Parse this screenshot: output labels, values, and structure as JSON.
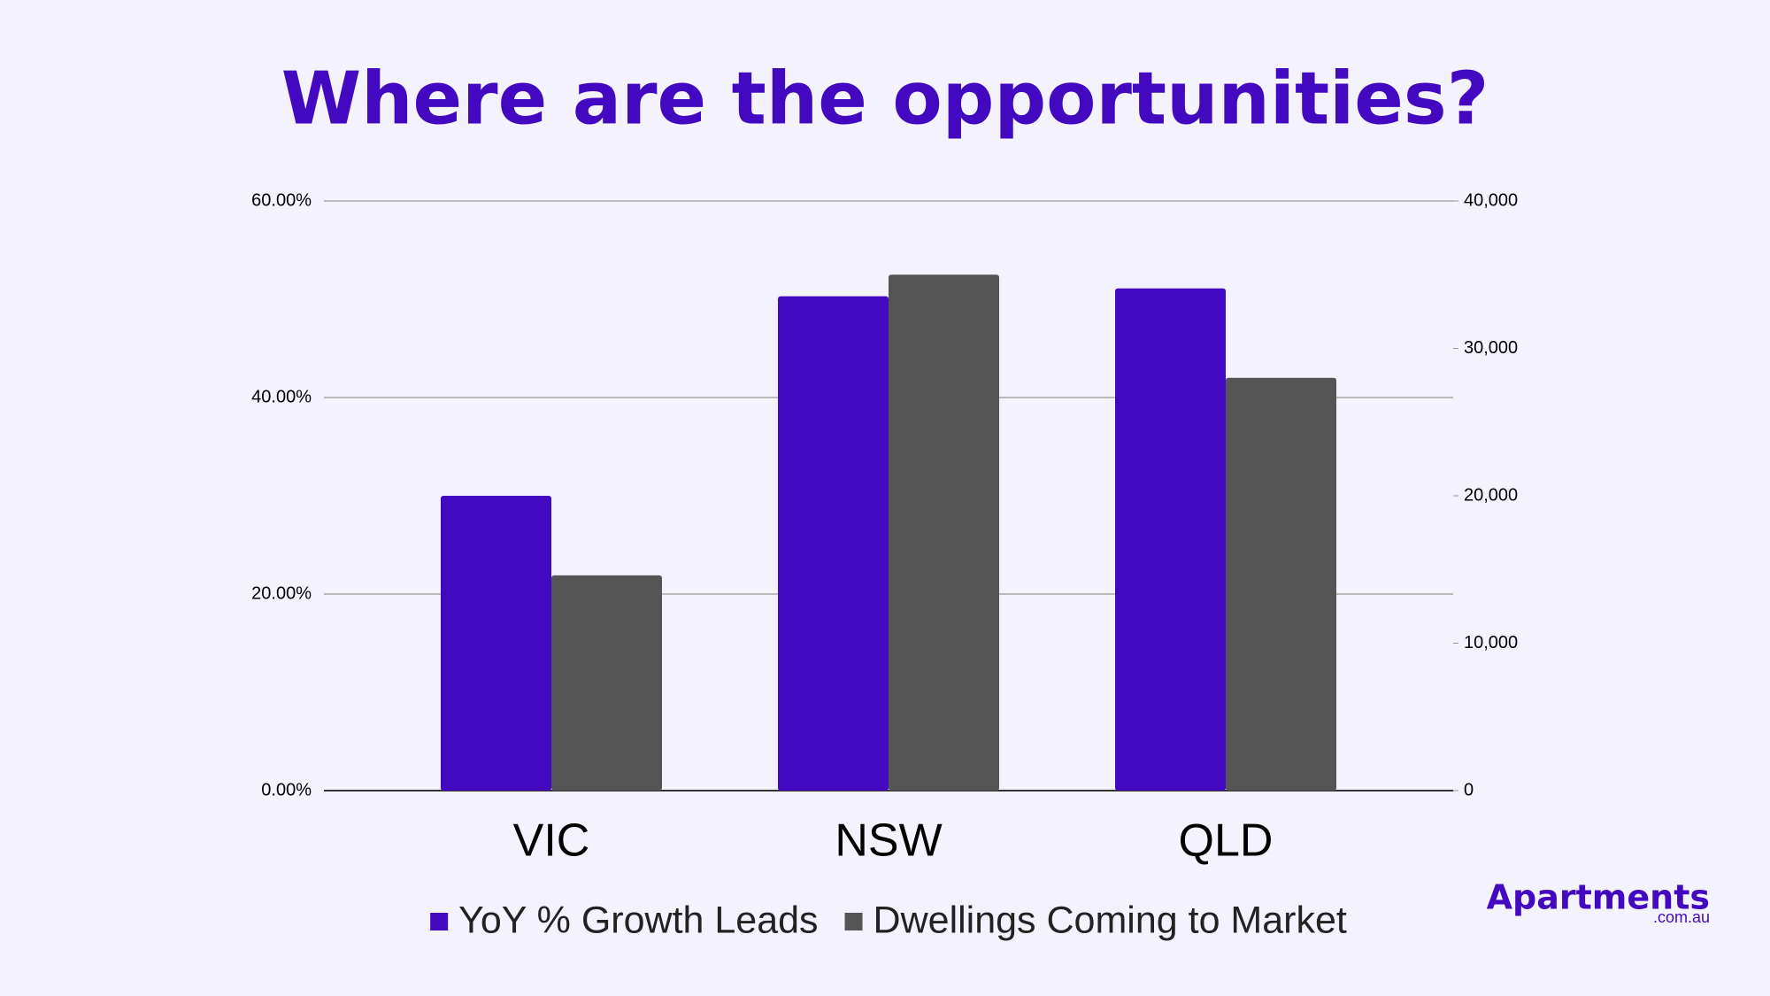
{
  "chart_data": {
    "type": "bar",
    "title": "Where are the opportunities?",
    "categories": [
      "VIC",
      "NSW",
      "QLD"
    ],
    "series": [
      {
        "name": "YoY % Growth Leads",
        "color": "#4309c0",
        "values": [
          30.0,
          50.3,
          51.1
        ]
      },
      {
        "name": "Dwellings Coming to Market",
        "color": "#555555",
        "values": [
          14600,
          35000,
          28000
        ],
        "axis": "y2"
      }
    ],
    "ylim": [
      0,
      60
    ],
    "yticks": [
      {
        "value": 0,
        "label": "0.00%"
      },
      {
        "value": 20,
        "label": "20.00%"
      },
      {
        "value": 40,
        "label": "40.00%"
      },
      {
        "value": 60,
        "label": "60.00%"
      }
    ],
    "y2lim": [
      0,
      40000
    ],
    "y2ticks": [
      0,
      {
        "value": 10000,
        "label": "10,000"
      },
      {
        "value": 20000,
        "label": "20,000"
      },
      {
        "value": 30000,
        "label": "30,000"
      },
      {
        "value": 40000,
        "label": "40,000"
      }
    ],
    "grid": true,
    "legend": "bottom"
  },
  "logo": {
    "name": "Apartments",
    "suffix": ".com.au"
  }
}
